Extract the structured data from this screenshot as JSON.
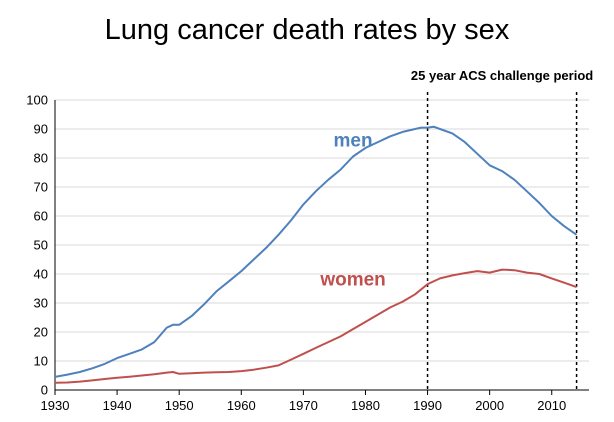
{
  "chart_data": {
    "type": "line",
    "title": "Lung cancer death rates by sex",
    "xlabel": "",
    "ylabel": "",
    "xlim": [
      1930,
      2016
    ],
    "ylim": [
      0,
      100
    ],
    "x_ticks": [
      1930,
      1940,
      1950,
      1960,
      1970,
      1980,
      1990,
      2000,
      2010
    ],
    "y_ticks": [
      0,
      10,
      20,
      30,
      40,
      50,
      60,
      70,
      80,
      90,
      100
    ],
    "grid": "horizontal",
    "legend": "none",
    "annotations": [
      {
        "text": "25 year ACS challenge period",
        "x_start": 1990,
        "x_end": 2014
      }
    ],
    "series": [
      {
        "name": "men",
        "color": "#4f81bd",
        "x": [
          1930,
          1932,
          1934,
          1936,
          1938,
          1940,
          1942,
          1944,
          1946,
          1948,
          1949,
          1950,
          1952,
          1954,
          1956,
          1958,
          1960,
          1962,
          1964,
          1966,
          1968,
          1970,
          1972,
          1974,
          1976,
          1978,
          1980,
          1982,
          1984,
          1986,
          1988,
          1989,
          1990,
          1991,
          1992,
          1994,
          1996,
          1998,
          2000,
          2002,
          2004,
          2006,
          2008,
          2010,
          2012,
          2014
        ],
        "values": [
          4.5,
          5.3,
          6.2,
          7.5,
          9.0,
          11.0,
          12.5,
          14.0,
          16.5,
          21.5,
          22.5,
          22.5,
          25.5,
          29.5,
          34.0,
          37.5,
          41.0,
          45.0,
          49.0,
          53.5,
          58.5,
          64.0,
          68.5,
          72.5,
          76.0,
          80.5,
          83.5,
          85.5,
          87.5,
          89.0,
          90.0,
          90.5,
          90.5,
          90.8,
          90.0,
          88.5,
          85.5,
          81.5,
          77.5,
          75.5,
          72.5,
          68.5,
          64.5,
          60.0,
          56.5,
          53.5
        ]
      },
      {
        "name": "women",
        "color": "#c0504d",
        "x": [
          1930,
          1932,
          1934,
          1936,
          1938,
          1940,
          1942,
          1944,
          1946,
          1948,
          1949,
          1950,
          1952,
          1954,
          1956,
          1958,
          1960,
          1962,
          1964,
          1966,
          1968,
          1970,
          1972,
          1974,
          1976,
          1978,
          1980,
          1982,
          1984,
          1986,
          1988,
          1990,
          1992,
          1994,
          1996,
          1998,
          2000,
          2002,
          2004,
          2006,
          2008,
          2010,
          2012,
          2014
        ],
        "values": [
          2.5,
          2.6,
          2.9,
          3.3,
          3.8,
          4.2,
          4.6,
          5.0,
          5.4,
          6.0,
          6.2,
          5.6,
          5.8,
          6.0,
          6.1,
          6.2,
          6.5,
          7.0,
          7.7,
          8.5,
          10.5,
          12.5,
          14.5,
          16.5,
          18.5,
          21.0,
          23.5,
          26.0,
          28.5,
          30.5,
          33.0,
          36.5,
          38.5,
          39.5,
          40.3,
          41.0,
          40.5,
          41.5,
          41.3,
          40.5,
          40.0,
          38.5,
          37.0,
          35.5
        ]
      }
    ]
  }
}
